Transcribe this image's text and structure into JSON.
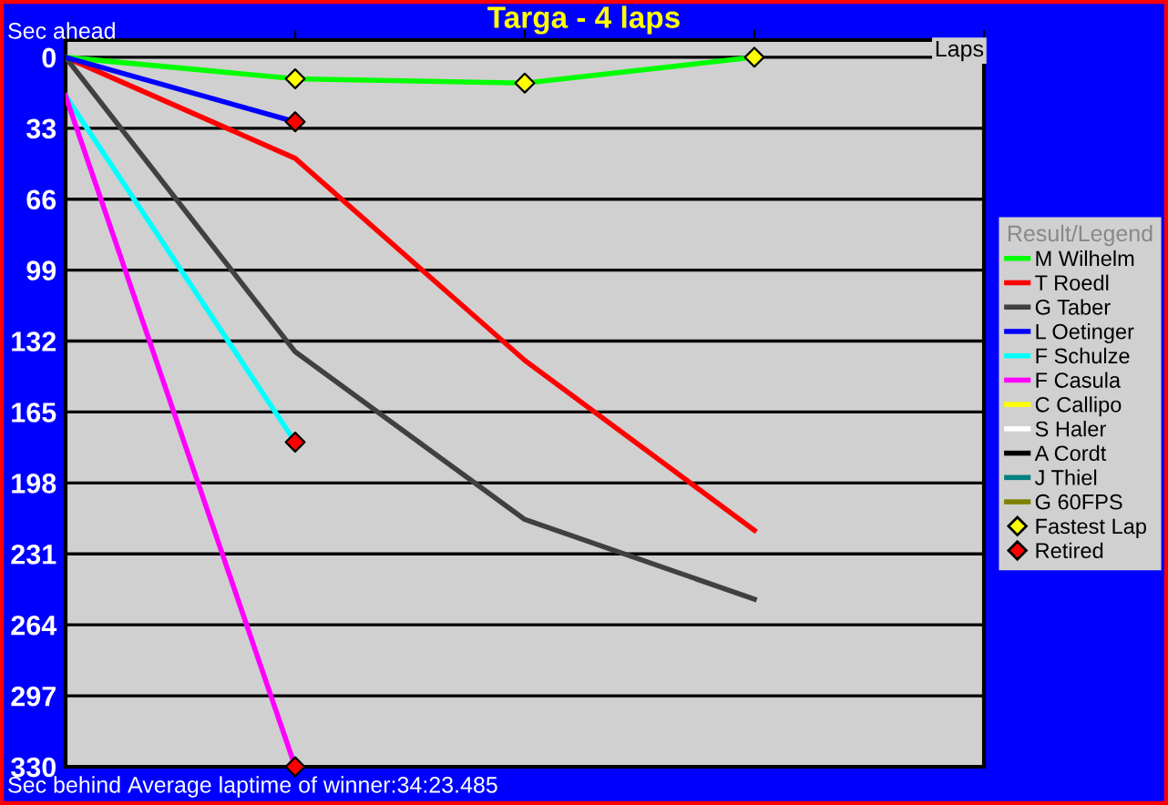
{
  "chart_data": {
    "type": "line",
    "title": "Targa - 4 laps",
    "xlabel": "Laps",
    "ylabel": "Sec ahead",
    "annotations": [
      "Sec behind",
      "Average laptime of winner:34:23.485"
    ],
    "legend_title": "Result/Legend",
    "legend": "right",
    "grid": "y",
    "tick_labels": "y",
    "line_style": "solid",
    "categories": [
      null,
      null,
      null,
      null,
      null
    ],
    "ylim": [
      330,
      -8
    ],
    "yticks": [
      0,
      33,
      66,
      99,
      132,
      165,
      198,
      231,
      264,
      297,
      330
    ],
    "series": [
      {
        "name": "M Wilhelm",
        "color": "#00ff00",
        "values": [
          0,
          10,
          12,
          0,
          null
        ]
      },
      {
        "name": "T Roedl",
        "color": "#ff0000",
        "values": [
          0,
          47,
          141,
          220,
          null
        ]
      },
      {
        "name": "G Taber",
        "color": "#404040",
        "values": [
          0,
          137,
          215,
          252,
          null
        ]
      },
      {
        "name": "L Oetinger",
        "color": "#0000ff",
        "values": [
          0,
          30,
          null,
          null,
          null
        ]
      },
      {
        "name": "F Schulze",
        "color": "#00ffff",
        "values": [
          18,
          179,
          null,
          null,
          null
        ]
      },
      {
        "name": "F Casula",
        "color": "#ff00ff",
        "values": [
          18,
          330,
          null,
          null,
          null
        ]
      },
      {
        "name": "C Callipo",
        "color": "#ffff00",
        "values": [
          null,
          null,
          null,
          null,
          null
        ]
      },
      {
        "name": "S Haler",
        "color": "#ffffff",
        "values": [
          null,
          null,
          null,
          null,
          null
        ]
      },
      {
        "name": "A Cordt",
        "color": "#000000",
        "values": [
          null,
          null,
          null,
          null,
          null
        ]
      },
      {
        "name": "J Thiel",
        "color": "#008080",
        "values": [
          null,
          null,
          null,
          null,
          null
        ]
      },
      {
        "name": "G 60FPS",
        "color": "#808000",
        "values": [
          null,
          null,
          null,
          null,
          null
        ]
      },
      {
        "name": "Fastest Lap",
        "type": "scatter",
        "marker": "diamond",
        "color": "#ffff00",
        "values": [
          null,
          10,
          12,
          0,
          null
        ]
      },
      {
        "name": "Retired",
        "type": "scatter",
        "marker": "diamond",
        "color": "#ff0000",
        "values": [
          null,
          30,
          null,
          null,
          null
        ]
      },
      {
        "type": "scatter",
        "marker": "diamond",
        "color": "#ff0000",
        "values": [
          null,
          179,
          null,
          null,
          null
        ]
      },
      {
        "type": "scatter",
        "marker": "diamond",
        "color": "#ff0000",
        "values": [
          null,
          330,
          null,
          null,
          null
        ]
      }
    ]
  }
}
